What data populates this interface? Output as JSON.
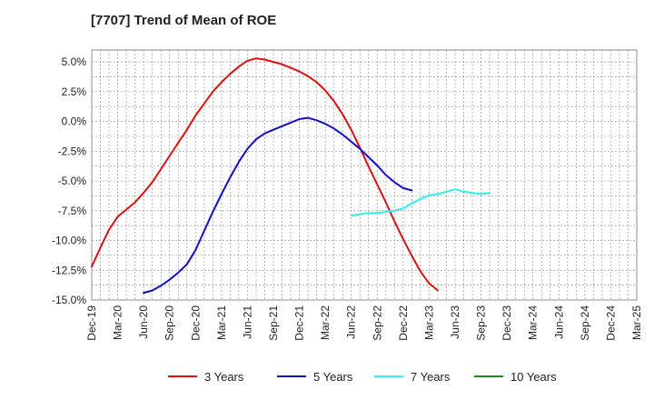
{
  "chart_data": {
    "type": "line",
    "title": "[7707]  Trend of Mean of ROE",
    "xlabel": "",
    "ylabel": "",
    "ylim": [
      -15.0,
      6.0
    ],
    "grid": true,
    "legend_position": "bottom",
    "x_tick_labels": [
      "Dec-19",
      "Mar-20",
      "Jun-20",
      "Sep-20",
      "Dec-20",
      "Mar-21",
      "Jun-21",
      "Sep-21",
      "Dec-21",
      "Mar-22",
      "Jun-22",
      "Sep-22",
      "Dec-22",
      "Mar-23",
      "Jun-23",
      "Sep-23",
      "Dec-23",
      "Mar-24",
      "Jun-24",
      "Sep-24",
      "Dec-24",
      "Mar-25"
    ],
    "y_ticks": [
      5.0,
      2.5,
      0.0,
      -2.5,
      -5.0,
      -7.5,
      -10.0,
      -12.5,
      -15.0
    ],
    "y_tick_labels": [
      "5.0%",
      "2.5%",
      "0.0%",
      "-2.5%",
      "-5.0%",
      "-7.5%",
      "-10.0%",
      "-12.5%",
      "-15.0%"
    ],
    "series": [
      {
        "name": "3 Years",
        "color": "#dd1111",
        "start_index": 0,
        "values": [
          -12.2,
          -10.6,
          -9.1,
          -8.0,
          -7.4,
          -6.8,
          -6.0,
          -5.1,
          -4.0,
          -2.9,
          -1.8,
          -0.7,
          0.5,
          1.5,
          2.5,
          3.3,
          4.0,
          4.6,
          5.1,
          5.3,
          5.2,
          5.0,
          4.8,
          4.5,
          4.2,
          3.8,
          3.3,
          2.6,
          1.7,
          0.6,
          -0.7,
          -2.2,
          -3.8,
          -5.3,
          -6.8,
          -8.4,
          -9.9,
          -11.3,
          -12.6,
          -13.6,
          -14.2
        ]
      },
      {
        "name": "5 Years",
        "color": "#1111cc",
        "start_index": 6,
        "values": [
          -14.4,
          -14.2,
          -13.8,
          -13.3,
          -12.7,
          -12.0,
          -10.8,
          -9.2,
          -7.6,
          -6.1,
          -4.7,
          -3.4,
          -2.3,
          -1.5,
          -1.0,
          -0.7,
          -0.4,
          -0.1,
          0.2,
          0.3,
          0.1,
          -0.2,
          -0.6,
          -1.1,
          -1.7,
          -2.3,
          -3.0,
          -3.7,
          -4.5,
          -5.1,
          -5.6,
          -5.8
        ]
      },
      {
        "name": "7 Years",
        "color": "#33eeee",
        "start_index": 30,
        "values": [
          -7.9,
          -7.8,
          -7.7,
          -7.7,
          -7.6,
          -7.5,
          -7.3,
          -6.9,
          -6.5,
          -6.2,
          -6.1,
          -5.9,
          -5.7,
          -5.9,
          -6.0,
          -6.1,
          -6.0
        ]
      },
      {
        "name": "10 Years",
        "color": "#228822",
        "start_index": 0,
        "values": []
      }
    ]
  }
}
